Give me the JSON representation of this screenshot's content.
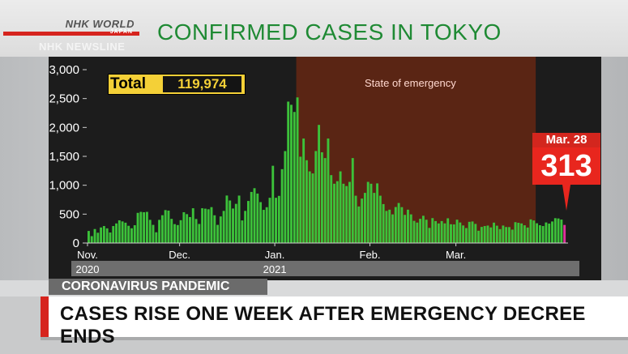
{
  "logo": {
    "main": "NHK WORLD",
    "sub": "JAPAN"
  },
  "newsline": "NHK NEWSLINE",
  "title": "CONFIRMED CASES IN TOKYO",
  "total": {
    "label": "Total",
    "value": "119,974"
  },
  "emergency_label": "State of emergency",
  "callout": {
    "date": "Mar. 28",
    "value": "313"
  },
  "lower_tag": "CORONAVIRUS PANDEMIC",
  "headline": "CASES RISE ONE WEEK AFTER EMERGENCY DECREE ENDS",
  "colors": {
    "bars": "#3cc23a",
    "last_bar": "#e0309b",
    "emergency_band": "#5a2514",
    "title": "#1f8a34",
    "total_box": "#f4d037",
    "callout": "#e8261e"
  },
  "chart_data": {
    "type": "bar",
    "xlabel": "",
    "ylabel": "",
    "ylim": [
      0,
      3000
    ],
    "yticks": [
      "3,000",
      "2,500",
      "2,000",
      "1,500",
      "1,000",
      "500",
      "0"
    ],
    "x_ticks": [
      {
        "label": "Nov.",
        "year": "2020",
        "index": 0
      },
      {
        "label": "Dec.",
        "year": "",
        "index": 30
      },
      {
        "label": "Jan.",
        "year": "2021",
        "index": 61
      },
      {
        "label": "Feb.",
        "year": "",
        "index": 92
      },
      {
        "label": "Mar.",
        "year": "",
        "index": 120
      }
    ],
    "emergency_range": [
      68,
      146
    ],
    "start_date": "2020-11-01",
    "end_date": "2021-03-28",
    "values": [
      209,
      119,
      242,
      178,
      269,
      294,
      254,
      182,
      294,
      339,
      393,
      374,
      352,
      298,
      255,
      308,
      522,
      539,
      533,
      539,
      401,
      314,
      186,
      401,
      481,
      570,
      561,
      418,
      327,
      311,
      395,
      533,
      500,
      449,
      602,
      416,
      330,
      602,
      595,
      584,
      621,
      480,
      314,
      460,
      556,
      822,
      736,
      597,
      678,
      821,
      391,
      556,
      728,
      884,
      949,
      856,
      708,
      574,
      620,
      783,
      1337,
      783,
      816,
      1278,
      1591,
      2447,
      2392,
      2268,
      2520,
      1494,
      1809,
      1433,
      1240,
      1204,
      1592,
      2044,
      1570,
      1470,
      1809,
      1175,
      1026,
      1070,
      1240,
      1026,
      986,
      1058,
      1470,
      819,
      633,
      769,
      868,
      1058,
      1026,
      868,
      1032,
      819,
      674,
      556,
      577,
      496,
      623,
      693,
      621,
      487,
      577,
      496,
      384,
      354,
      419,
      472,
      403,
      262,
      431,
      380,
      339,
      380,
      340,
      428,
      325,
      322,
      404,
      355,
      304,
      259,
      367,
      373,
      331,
      213,
      279,
      294,
      302,
      270,
      353,
      300,
      241,
      303,
      277,
      276,
      232,
      361,
      350,
      339,
      307,
      268,
      409,
      390,
      342,
      308,
      294,
      356,
      336,
      373,
      430,
      425,
      406,
      313
    ]
  }
}
